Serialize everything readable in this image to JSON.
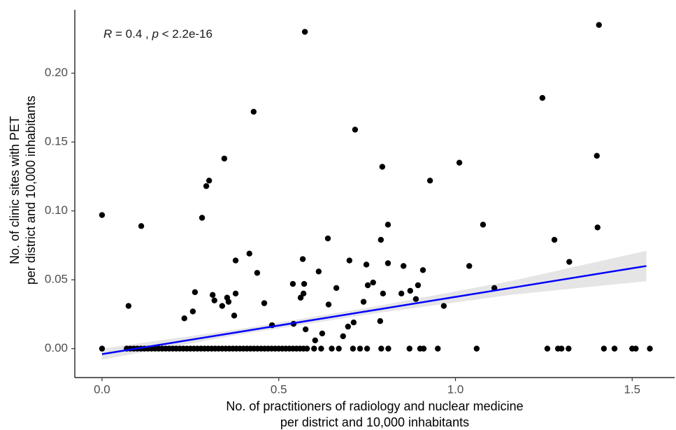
{
  "chart_data": {
    "type": "scatter",
    "annotation": [
      "R",
      " = 0.4 , ",
      "p",
      " < 2.2e-16"
    ],
    "xlabel": [
      "No. of practitioners of radiology and nuclear medicine",
      "per district and 10,000 inhabitants"
    ],
    "ylabel": [
      "No. of clinic sites with PET",
      "per district and 10,000 inhabitants"
    ],
    "x": [
      0,
      0,
      0.075,
      0.111,
      0.233,
      0.257,
      0.263,
      0.283,
      0.295,
      0.303,
      0.313,
      0.318,
      0.34,
      0.346,
      0.354,
      0.358,
      0.374,
      0.378,
      0.378,
      0.417,
      0.429,
      0.439,
      0.459,
      0.481,
      0.54,
      0.542,
      0.562,
      0.568,
      0.57,
      0.572,
      0.576,
      0.574,
      0.603,
      0.613,
      0.623,
      0.639,
      0.641,
      0.663,
      0.682,
      0.696,
      0.7,
      0.712,
      0.716,
      0.74,
      0.748,
      0.752,
      0.767,
      0.787,
      0.789,
      0.793,
      0.795,
      0.809,
      0.809,
      0.847,
      0.853,
      0.872,
      0.888,
      0.894,
      0.908,
      0.928,
      0.967,
      1.011,
      1.039,
      1.078,
      1.11,
      1.246,
      1.28,
      1.322,
      1.4,
      1.402,
      1.406,
      0.07,
      0.08,
      0.09,
      0.1,
      0.11,
      0.12,
      0.13,
      0.14,
      0.15,
      0.16,
      0.17,
      0.18,
      0.19,
      0.2,
      0.21,
      0.22,
      0.23,
      0.24,
      0.25,
      0.26,
      0.27,
      0.28,
      0.29,
      0.3,
      0.31,
      0.32,
      0.33,
      0.34,
      0.35,
      0.36,
      0.37,
      0.38,
      0.39,
      0.4,
      0.41,
      0.42,
      0.43,
      0.44,
      0.45,
      0.46,
      0.47,
      0.48,
      0.49,
      0.5,
      0.51,
      0.52,
      0.53,
      0.54,
      0.55,
      0.56,
      0.57,
      0.58,
      0.6,
      0.62,
      0.65,
      0.67,
      0.71,
      0.73,
      0.75,
      0.79,
      0.81,
      0.87,
      0.9,
      0.91,
      0.95,
      1.06,
      1.26,
      1.29,
      1.3,
      1.32,
      1.42,
      1.45,
      1.5,
      1.51,
      1.55
    ],
    "values": [
      0,
      0.097,
      0.031,
      0.089,
      0.022,
      0.027,
      0.041,
      0.095,
      0.118,
      0.122,
      0.039,
      0.035,
      0.031,
      0.138,
      0.037,
      0.034,
      0.024,
      0.064,
      0.04,
      0.069,
      0.172,
      0.055,
      0.033,
      0.017,
      0.047,
      0.018,
      0.037,
      0.065,
      0.04,
      0.047,
      0.014,
      0.23,
      0.006,
      0.056,
      0.011,
      0.08,
      0.032,
      0.044,
      0.009,
      0.016,
      0.064,
      0.019,
      0.159,
      0.034,
      0.061,
      0.046,
      0.048,
      0.02,
      0.079,
      0.132,
      0.04,
      0.062,
      0.09,
      0.04,
      0.06,
      0.042,
      0.036,
      0.046,
      0.057,
      0.122,
      0.031,
      0.135,
      0.06,
      0.09,
      0.044,
      0.182,
      0.079,
      0.063,
      0.14,
      0.088,
      0.235,
      0,
      0,
      0,
      0,
      0,
      0,
      0,
      0,
      0,
      0,
      0,
      0,
      0,
      0,
      0,
      0,
      0,
      0,
      0,
      0,
      0,
      0,
      0,
      0,
      0,
      0,
      0,
      0,
      0,
      0,
      0,
      0,
      0,
      0,
      0,
      0,
      0,
      0,
      0,
      0,
      0,
      0,
      0,
      0,
      0,
      0,
      0,
      0,
      0,
      0,
      0,
      0,
      0,
      0,
      0,
      0,
      0,
      0,
      0,
      0,
      0,
      0,
      0,
      0,
      0,
      0,
      0,
      0,
      0,
      0,
      0,
      0,
      0,
      0,
      0
    ],
    "color": "#000000",
    "fit": {
      "x": [
        0,
        0.385,
        0.77,
        1.155,
        1.54
      ],
      "values": [
        -0.004,
        0.012,
        0.028,
        0.044,
        0.06
      ],
      "lower": [
        -0.008,
        0.01,
        0.0255,
        0.039,
        0.049
      ],
      "upper": [
        0.0,
        0.014,
        0.0305,
        0.049,
        0.071
      ],
      "color": "#0000ff",
      "band_color": "#d3d3d3"
    },
    "xlim": [
      -0.077,
      1.62
    ],
    "ylim": [
      -0.021,
      0.246
    ],
    "xticks": [
      {
        "value": 0,
        "label": "0.0"
      },
      0.5,
      {
        "value": 1,
        "label": "1.0"
      },
      1.5
    ],
    "yticks": [
      {
        "value": 0,
        "label": "0.00"
      },
      0.05,
      {
        "value": 0.1,
        "label": "0.10"
      },
      0.15,
      {
        "value": 0.2,
        "label": "0.20"
      }
    ],
    "grid": false
  }
}
